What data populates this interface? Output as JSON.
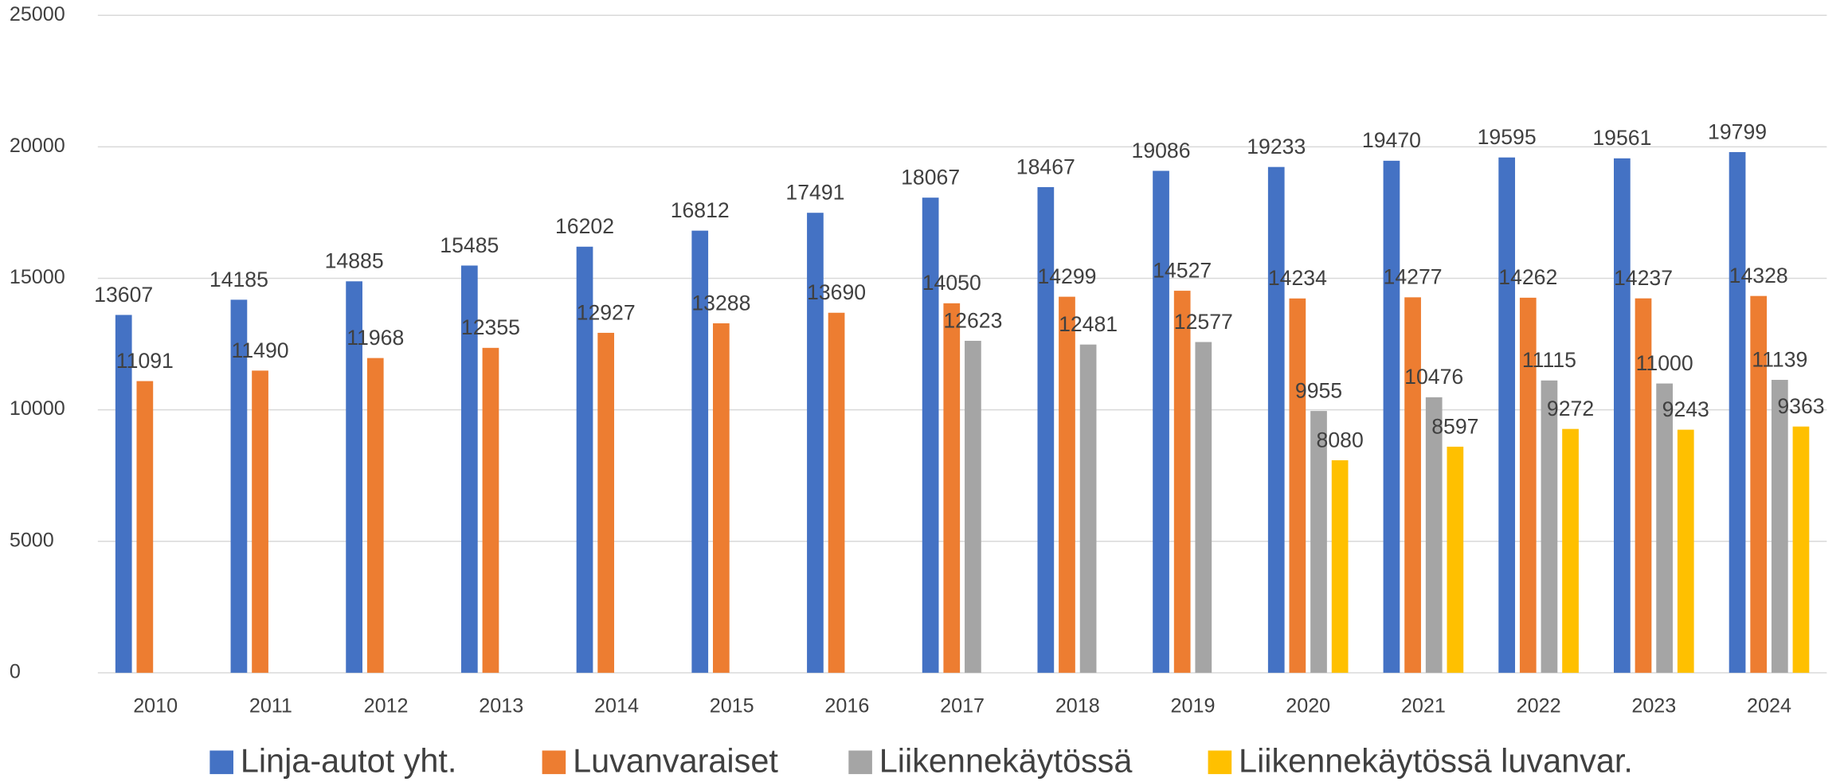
{
  "chart_data": {
    "type": "bar",
    "categories": [
      "2010",
      "2011",
      "2012",
      "2013",
      "2014",
      "2015",
      "2016",
      "2017",
      "2018",
      "2019",
      "2020",
      "2021",
      "2022",
      "2023",
      "2024"
    ],
    "series": [
      {
        "name": "Linja-autot yht.",
        "color": "#4472c4",
        "values": [
          13607,
          14185,
          14885,
          15485,
          16202,
          16812,
          17491,
          18067,
          18467,
          19086,
          19233,
          19470,
          19595,
          19561,
          19799
        ]
      },
      {
        "name": "Luvanvaraiset",
        "color": "#ed7d31",
        "values": [
          11091,
          11490,
          11968,
          12355,
          12927,
          13288,
          13690,
          14050,
          14299,
          14527,
          14234,
          14277,
          14262,
          14237,
          14328
        ]
      },
      {
        "name": "Liikennekäytössä",
        "color": "#a5a5a5",
        "values": [
          null,
          null,
          null,
          null,
          null,
          null,
          null,
          12623,
          12481,
          12577,
          9955,
          10476,
          11115,
          11000,
          11139
        ]
      },
      {
        "name": "Liikennekäytössä luvanvar.",
        "color": "#ffc000",
        "values": [
          null,
          null,
          null,
          null,
          null,
          null,
          null,
          null,
          null,
          null,
          8080,
          8597,
          9272,
          9243,
          9363
        ]
      }
    ],
    "ylim": [
      0,
      25000
    ],
    "yticks": [
      0,
      5000,
      10000,
      15000,
      20000,
      25000
    ],
    "grid": true,
    "legend": "bottom"
  }
}
